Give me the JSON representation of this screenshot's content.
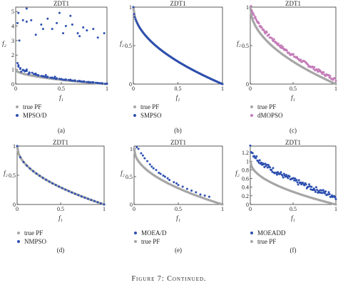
{
  "figure_caption": "Figure 7: Continued.",
  "colors": {
    "true_pf": "#a6a6a6",
    "blue": "#2d4fb0",
    "pink": "#c47bb8"
  },
  "chart_data": [
    {
      "type": "scatter",
      "panel_label": "(a)",
      "title": "ZDT1",
      "xlabel": "f₁",
      "ylabel": "f₂",
      "xlim": [
        0,
        1
      ],
      "ylim": [
        0,
        5.3
      ],
      "xticks": [
        0,
        0.5,
        1
      ],
      "xtick_labels": [
        "0",
        "0.5",
        "1"
      ],
      "yticks": [
        0,
        1,
        2,
        3,
        4,
        5
      ],
      "ytick_labels": [
        "0",
        "1",
        "2",
        "3",
        "4",
        "5"
      ],
      "legend": [
        "true PF",
        "MPSO/D"
      ],
      "series": [
        {
          "name": "true PF",
          "color": "#a6a6a6",
          "curve": "zdt1",
          "x": [
            0,
            1
          ]
        },
        {
          "name": "MPSO/D",
          "color": "#2d4fb0",
          "x": [
            0.02,
            0.03,
            0.05,
            0.08,
            0.1,
            0.12,
            0.15,
            0.2,
            0.22,
            0.25,
            0.3,
            0.33,
            0.35,
            0.4,
            0.43,
            0.45,
            0.5,
            0.55,
            0.6,
            0.65,
            0.7,
            0.75,
            0.8,
            0.85,
            0.9,
            0.95,
            1.0,
            0.05,
            0.1,
            0.15,
            0.2,
            0.25,
            0.3,
            0.35,
            0.4,
            0.45,
            0.5,
            0.55,
            0.6,
            0.65,
            0.7,
            0.75,
            0.8,
            0.85,
            0.9,
            0.95,
            0.03,
            0.08,
            0.12,
            0.18,
            0.22,
            0.28,
            0.32,
            0.38,
            0.42,
            0.48,
            0.52,
            0.58,
            0.62,
            0.68,
            0.72,
            0.78,
            0.82,
            0.88,
            0.92,
            0.98,
            0.06,
            0.14,
            0.24,
            0.34,
            0.44,
            0.54,
            0.64,
            0.74,
            0.84,
            0.94,
            0.12,
            0.03,
            0.04,
            0.12,
            0.17,
            0.22,
            0.28,
            0.35,
            0.4,
            0.45,
            0.48,
            0.52,
            0.6,
            0.62,
            0.68,
            0.74,
            0.78,
            0.85,
            0.9,
            0.97,
            0.08,
            0.3,
            0.55,
            0.02,
            0.7
          ],
          "y": [
            1.45,
            1.3,
            1.05,
            0.95,
            0.88,
            1.0,
            0.8,
            0.7,
            0.72,
            0.6,
            0.55,
            0.62,
            0.48,
            0.45,
            0.5,
            0.4,
            0.35,
            0.32,
            0.3,
            0.25,
            0.22,
            0.18,
            0.15,
            0.12,
            0.08,
            0.05,
            0.03,
            1.1,
            0.92,
            0.75,
            0.68,
            0.58,
            0.52,
            0.5,
            0.42,
            0.38,
            0.33,
            0.28,
            0.26,
            0.22,
            0.2,
            0.16,
            0.12,
            0.1,
            0.07,
            0.04,
            1.2,
            0.98,
            0.9,
            0.78,
            0.65,
            0.56,
            0.5,
            0.44,
            0.4,
            0.36,
            0.3,
            0.28,
            0.24,
            0.2,
            0.18,
            0.14,
            0.12,
            0.09,
            0.06,
            0.02,
            0.85,
            0.7,
            0.62,
            0.48,
            0.36,
            0.3,
            0.24,
            0.18,
            0.12,
            0.06,
            5.2,
            4.9,
            3.0,
            4.3,
            4.4,
            3.4,
            4.1,
            4.5,
            3.8,
            4.2,
            4.9,
            3.5,
            4.7,
            4.1,
            3.5,
            3.9,
            3.7,
            3.8,
            3.2,
            3.5,
            4.4,
            3.8,
            4.0,
            4.2,
            3.3
          ]
        }
      ]
    },
    {
      "type": "scatter",
      "panel_label": "(b)",
      "title": "ZDT1",
      "xlabel": "f₁",
      "ylabel": "f₂",
      "xlim": [
        0,
        1
      ],
      "ylim": [
        0,
        1
      ],
      "xticks": [
        0,
        0.5,
        1
      ],
      "xtick_labels": [
        "0",
        "0.5",
        "1"
      ],
      "yticks": [
        0,
        0.5,
        1
      ],
      "ytick_labels": [
        "0",
        "0.5",
        "1"
      ],
      "legend": [
        "true PF",
        "SMPSO"
      ],
      "series": [
        {
          "name": "true PF",
          "color": "#a6a6a6",
          "curve": "zdt1",
          "x": [
            0,
            1
          ]
        },
        {
          "name": "SMPSO",
          "color": "#2d4fb0",
          "curve": "zdt1",
          "x": [
            0,
            1
          ],
          "marker": "dense"
        }
      ]
    },
    {
      "type": "scatter",
      "panel_label": "(c)",
      "title": "ZDT1",
      "xlabel": "f₁",
      "ylabel": "f₂",
      "xlim": [
        0,
        1
      ],
      "ylim": [
        0,
        1
      ],
      "xticks": [
        0,
        0.5,
        1
      ],
      "xtick_labels": [
        "0",
        "0.5",
        "1"
      ],
      "yticks": [
        0,
        0.5,
        1
      ],
      "ytick_labels": [
        "0",
        "0.5",
        "1"
      ],
      "legend": [
        "true PF",
        "dMOPSO"
      ],
      "series": [
        {
          "name": "true PF",
          "color": "#a6a6a6",
          "curve": "zdt1",
          "x": [
            0,
            1
          ]
        },
        {
          "name": "dMOPSO",
          "color": "#c47bb8",
          "curve": "zdt1_offset",
          "offset": 0.08,
          "x": [
            0,
            1
          ],
          "marker": "dense"
        }
      ]
    },
    {
      "type": "scatter",
      "panel_label": "(d)",
      "title": "ZDT1",
      "xlabel": "f₁",
      "ylabel": "f₂",
      "xlim": [
        0,
        1
      ],
      "ylim": [
        0,
        1
      ],
      "xticks": [
        0,
        0.5,
        1
      ],
      "xtick_labels": [
        "0",
        "0.5",
        "1"
      ],
      "yticks": [
        0,
        0.5,
        1
      ],
      "ytick_labels": [
        "0",
        "0.5",
        "1"
      ],
      "legend": [
        "true PF",
        "NMPSO"
      ],
      "series": [
        {
          "name": "true PF",
          "color": "#a6a6a6",
          "curve": "zdt1",
          "x": [
            0,
            1
          ]
        },
        {
          "name": "NMPSO",
          "color": "#2d4fb0",
          "curve": "zdt1",
          "x": [
            0,
            1
          ],
          "marker": "sparse"
        }
      ]
    },
    {
      "type": "scatter",
      "panel_label": "(e)",
      "title": "ZDT1",
      "xlabel": "f₁",
      "ylabel": "f₂",
      "xlim": [
        0,
        1
      ],
      "ylim": [
        0,
        1.05
      ],
      "xticks": [
        0,
        0.5,
        1
      ],
      "xtick_labels": [
        "0",
        "0.5",
        "1"
      ],
      "yticks": [
        0,
        0.5,
        1
      ],
      "ytick_labels": [
        "0",
        "0.5",
        "1"
      ],
      "legend": [
        "MOEA/D",
        "true PF"
      ],
      "series": [
        {
          "name": "MOEA/D",
          "color": "#2d4fb0",
          "x": [
            0.03,
            0.05,
            0.08,
            0.1,
            0.12,
            0.15,
            0.18,
            0.2,
            0.22,
            0.25,
            0.28,
            0.3,
            0.33,
            0.35,
            0.38,
            0.4,
            0.45,
            0.48,
            0.5,
            0.55,
            0.6,
            0.65,
            0.7,
            0.75,
            0.8,
            0.85
          ],
          "y": [
            1.03,
            1.0,
            0.92,
            0.88,
            0.83,
            0.78,
            0.72,
            0.68,
            0.65,
            0.62,
            0.57,
            0.55,
            0.52,
            0.5,
            0.47,
            0.44,
            0.4,
            0.38,
            0.35,
            0.32,
            0.28,
            0.25,
            0.22,
            0.18,
            0.16,
            0.14
          ]
        },
        {
          "name": "true PF",
          "color": "#a6a6a6",
          "curve": "zdt1",
          "x": [
            0,
            1
          ]
        }
      ]
    },
    {
      "type": "scatter",
      "panel_label": "(f)",
      "title": "ZDT1",
      "xlabel": "f₁",
      "ylabel": "f₂",
      "xlim": [
        0,
        1
      ],
      "ylim": [
        0,
        1.35
      ],
      "xticks": [
        0,
        0.5,
        1
      ],
      "xtick_labels": [
        "0",
        "0.5",
        "1"
      ],
      "yticks": [
        0,
        0.2,
        0.4,
        0.6,
        0.8,
        1,
        1.2
      ],
      "ytick_labels": [
        "0",
        "0.2",
        "0.4",
        "0.6",
        "0.8",
        "1",
        "1.2"
      ],
      "legend": [
        "MOEADD",
        "true PF"
      ],
      "series": [
        {
          "name": "MOEADD",
          "color": "#2d4fb0",
          "curve": "zdt1_offset",
          "offset": 0.3,
          "x": [
            0,
            1
          ],
          "marker": "noisy"
        },
        {
          "name": "true PF",
          "color": "#a6a6a6",
          "curve": "zdt1",
          "x": [
            0,
            1
          ]
        }
      ]
    }
  ]
}
